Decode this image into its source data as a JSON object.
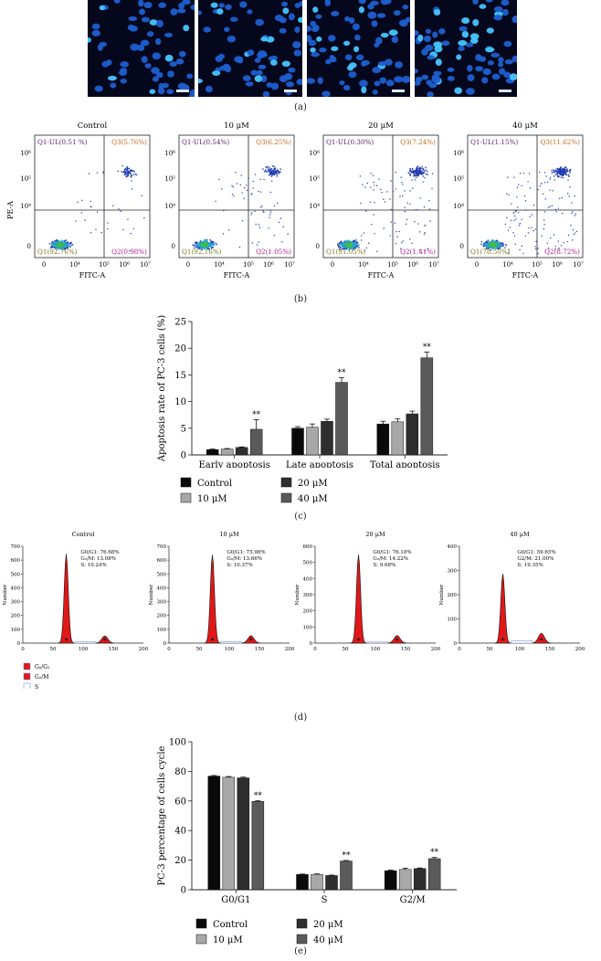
{
  "panel_labels": {
    "a": "(a)",
    "b": "(b)",
    "c": "(c)",
    "d": "(d)",
    "e": "(e)"
  },
  "colors": {
    "control": "#0a0a0a",
    "c10": "#a8a8a8",
    "c20": "#2e2e2e",
    "c40": "#5a5a5a",
    "g1_fill": "#e01818",
    "g2_fill": "#e01818"
  },
  "microscopy": {
    "panels": [
      "dapi-control",
      "dapi-10uM",
      "dapi-20uM",
      "dapi-40uM"
    ]
  },
  "flow": {
    "x_axis_label": "FITC-A",
    "y_axis_label": "PE-A",
    "x_ticks": [
      "0",
      "10⁴",
      "10⁵",
      "10⁶",
      "10⁷"
    ],
    "y_ticks": [
      "0",
      "10⁴",
      "10⁵",
      "10⁶"
    ],
    "panels": [
      {
        "title": "Control",
        "ul": "Q1-UL(0.51 %)",
        "ur": "Q3(5.76%)",
        "ll": "Q1(92.76%)",
        "lr": "Q2(0.98%)"
      },
      {
        "title": "10 μM",
        "ul": "Q1-UL(0.54%)",
        "ur": "Q3(6.25%)",
        "ll": "Q1(92.16%)",
        "lr": "Q2(1.05%)"
      },
      {
        "title": "20 μM",
        "ul": "Q1-UL(0.30%)",
        "ur": "Q3(7.24%)",
        "ll": "Q1(91.05%)",
        "lr": "Q2(1.41%)"
      },
      {
        "title": "40 μM",
        "ul": "Q1-UL(1.15%)",
        "ur": "Q3(11.62%)",
        "ll": "Q1(78.50%)",
        "lr": "Q2(8.72%)"
      }
    ]
  },
  "histograms": {
    "x_ticks": [
      "0",
      "50",
      "100",
      "150",
      "200"
    ],
    "y_axis_label": "Number",
    "legend": [
      "G₀/G₁",
      "G₂/M",
      "S"
    ],
    "panels": [
      {
        "title": "Control",
        "ymax": 700,
        "yticks": [
          "0",
          "100",
          "200",
          "300",
          "400",
          "500",
          "600",
          "700"
        ],
        "stats": [
          "G0/G1: 76.68%",
          "G₂/M: 13.08%",
          "S: 10.24%"
        ],
        "g1": 76.68,
        "g2": 13.08,
        "s": 10.24
      },
      {
        "title": "10 μM",
        "ymax": 700,
        "yticks": [
          "0",
          "100",
          "200",
          "300",
          "400",
          "500",
          "600",
          "700"
        ],
        "stats": [
          "G0/G1: 75.98%",
          "G₂/M: 13.66%",
          "S: 10.37%"
        ],
        "g1": 75.98,
        "g2": 13.66,
        "s": 10.37
      },
      {
        "title": "20 μM",
        "ymax": 600,
        "yticks": [
          "0",
          "100",
          "200",
          "300",
          "400",
          "500",
          "600"
        ],
        "stats": [
          "G0/G1: 76.10%",
          "G₂/M: 14.22%",
          "S: 9.68%"
        ],
        "g1": 76.1,
        "g2": 14.22,
        "s": 9.68
      },
      {
        "title": "40 μM",
        "ymax": 400,
        "yticks": [
          "0",
          "100",
          "200",
          "300",
          "400"
        ],
        "stats": [
          "G0/G1: 59.65%",
          "G2/M: 21.00%",
          "S: 19.35%"
        ],
        "g1": 59.65,
        "g2": 21.0,
        "s": 19.35
      }
    ]
  },
  "chart_data": [
    {
      "type": "bar",
      "title": "",
      "ylabel": "Apoptosis rate of PC-3 cells (%)",
      "ylim": [
        0,
        25
      ],
      "yticks": [
        0,
        5,
        10,
        15,
        20,
        25
      ],
      "categories": [
        "Early apoptosis",
        "Late apoptosis",
        "Total apoptosis"
      ],
      "series": [
        {
          "name": "Control",
          "values": [
            1.0,
            5.0,
            5.8
          ],
          "err": [
            0.1,
            0.3,
            0.5
          ]
        },
        {
          "name": "10 μM",
          "values": [
            1.1,
            5.2,
            6.2
          ],
          "err": [
            0.1,
            0.6,
            0.6
          ]
        },
        {
          "name": "20 μM",
          "values": [
            1.4,
            6.3,
            7.7
          ],
          "err": [
            0.1,
            0.4,
            0.5
          ]
        },
        {
          "name": "40 μM",
          "values": [
            4.8,
            13.6,
            18.2
          ],
          "err": [
            1.8,
            0.9,
            1.1
          ]
        }
      ],
      "significance": [
        "**",
        "**",
        "**"
      ],
      "legend": [
        "Control",
        "10 μM",
        "20 μM",
        "40 μM"
      ]
    },
    {
      "type": "bar",
      "title": "",
      "ylabel": "PC-3 percentage of cells cycle",
      "ylim": [
        0,
        100
      ],
      "yticks": [
        0,
        20,
        40,
        60,
        80,
        100
      ],
      "categories": [
        "G0/G1",
        "S",
        "G2/M"
      ],
      "series": [
        {
          "name": "Control",
          "values": [
            76.8,
            10.3,
            12.9
          ],
          "err": [
            0.4,
            0.3,
            0.4
          ]
        },
        {
          "name": "10 μM",
          "values": [
            76.0,
            10.4,
            13.7
          ],
          "err": [
            0.5,
            0.3,
            0.9
          ]
        },
        {
          "name": "20 μM",
          "values": [
            75.6,
            9.6,
            14.3
          ],
          "err": [
            0.5,
            0.3,
            0.4
          ]
        },
        {
          "name": "40 μM",
          "values": [
            59.7,
            19.4,
            21.0
          ],
          "err": [
            0.4,
            0.4,
            0.8
          ]
        }
      ],
      "significance": [
        "**",
        "**",
        "**"
      ],
      "legend": [
        "Control",
        "10 μM",
        "20 μM",
        "40 μM"
      ]
    }
  ]
}
